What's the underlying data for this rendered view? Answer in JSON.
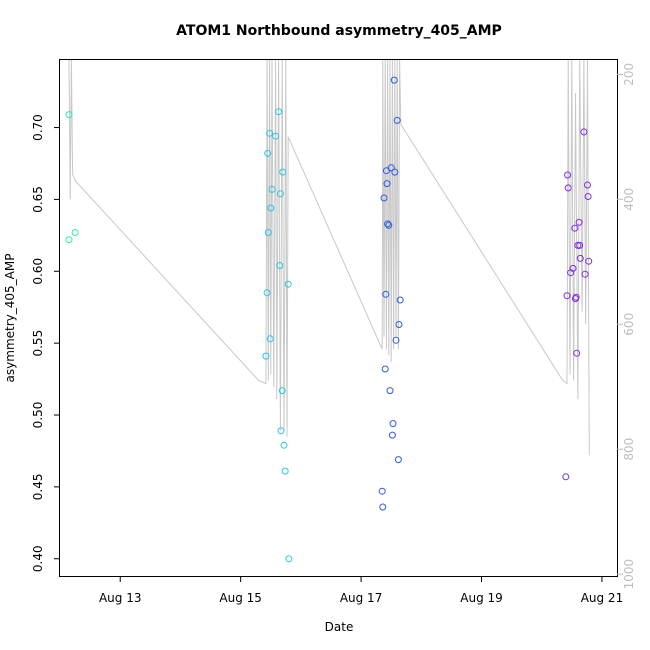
{
  "chart_data": {
    "type": "scatter",
    "title": "ATOM1 Northbound asymmetry_405_AMP",
    "xlabel": "Date",
    "ylabel": "asymmetry_405_AMP",
    "xlim": [
      12.0,
      21.25
    ],
    "ylim": [
      0.388,
      0.747
    ],
    "x_ticks": [
      {
        "value": 13,
        "label": "Aug 13"
      },
      {
        "value": 15,
        "label": "Aug 15"
      },
      {
        "value": 17,
        "label": "Aug 17"
      },
      {
        "value": 19,
        "label": "Aug 19"
      },
      {
        "value": 21,
        "label": "Aug 21"
      }
    ],
    "y_ticks": [
      0.4,
      0.45,
      0.5,
      0.55,
      0.6,
      0.65,
      0.7
    ],
    "y2_axis": {
      "reversed": true,
      "lim": [
        177,
        1003
      ],
      "ticks": [
        200,
        400,
        600,
        800,
        1000
      ],
      "color": "#bdbdbd"
    },
    "series": [
      {
        "color": "#33e8a6",
        "points": [
          [
            12.15,
            0.709
          ],
          [
            12.15,
            0.622
          ],
          [
            12.25,
            0.627
          ]
        ]
      },
      {
        "color": "#27c6e6",
        "points": [
          [
            15.42,
            0.541
          ],
          [
            15.44,
            0.585
          ],
          [
            15.45,
            0.682
          ],
          [
            15.46,
            0.627
          ],
          [
            15.48,
            0.696
          ],
          [
            15.49,
            0.553
          ],
          [
            15.5,
            0.644
          ],
          [
            15.52,
            0.657
          ],
          [
            15.58,
            0.694
          ],
          [
            15.63,
            0.711
          ],
          [
            15.65,
            0.604
          ],
          [
            15.66,
            0.654
          ],
          [
            15.67,
            0.489
          ],
          [
            15.69,
            0.517
          ],
          [
            15.7,
            0.669
          ],
          [
            15.72,
            0.479
          ],
          [
            15.74,
            0.461
          ],
          [
            15.79,
            0.591
          ],
          [
            15.8,
            0.4
          ]
        ]
      },
      {
        "color": "#2e5be6",
        "points": [
          [
            17.35,
            0.447
          ],
          [
            17.36,
            0.436
          ],
          [
            17.38,
            0.651
          ],
          [
            17.4,
            0.532
          ],
          [
            17.41,
            0.584
          ],
          [
            17.42,
            0.67
          ],
          [
            17.43,
            0.661
          ],
          [
            17.44,
            0.633
          ],
          [
            17.46,
            0.632
          ],
          [
            17.48,
            0.517
          ],
          [
            17.5,
            0.672
          ],
          [
            17.52,
            0.486
          ],
          [
            17.53,
            0.494
          ],
          [
            17.55,
            0.733
          ],
          [
            17.56,
            0.669
          ],
          [
            17.58,
            0.552
          ],
          [
            17.6,
            0.705
          ],
          [
            17.62,
            0.469
          ],
          [
            17.63,
            0.563
          ],
          [
            17.65,
            0.58
          ]
        ]
      },
      {
        "color": "#7e2ee6",
        "points": [
          [
            20.4,
            0.457
          ],
          [
            20.42,
            0.583
          ],
          [
            20.43,
            0.667
          ],
          [
            20.44,
            0.658
          ],
          [
            20.48,
            0.599
          ],
          [
            20.52,
            0.602
          ],
          [
            20.55,
            0.63
          ],
          [
            20.56,
            0.581
          ],
          [
            20.57,
            0.582
          ],
          [
            20.58,
            0.543
          ],
          [
            20.6,
            0.618
          ],
          [
            20.62,
            0.634
          ],
          [
            20.63,
            0.618
          ],
          [
            20.64,
            0.609
          ],
          [
            20.7,
            0.697
          ],
          [
            20.72,
            0.598
          ],
          [
            20.76,
            0.66
          ],
          [
            20.77,
            0.652
          ],
          [
            20.78,
            0.607
          ]
        ]
      }
    ],
    "pressure_series": {
      "color": "#c8c8c8",
      "points": [
        [
          12.15,
          177
        ],
        [
          12.17,
          400
        ],
        [
          12.19,
          177
        ],
        [
          12.21,
          360
        ],
        [
          12.25,
          370
        ],
        [
          15.3,
          690
        ],
        [
          15.42,
          695
        ],
        [
          15.44,
          177
        ],
        [
          15.46,
          690
        ],
        [
          15.48,
          177
        ],
        [
          15.5,
          680
        ],
        [
          15.52,
          177
        ],
        [
          15.55,
          700
        ],
        [
          15.58,
          177
        ],
        [
          15.6,
          720
        ],
        [
          15.63,
          177
        ],
        [
          15.66,
          770
        ],
        [
          15.69,
          177
        ],
        [
          15.72,
          770
        ],
        [
          15.75,
          177
        ],
        [
          15.77,
          780
        ],
        [
          15.79,
          300
        ],
        [
          17.35,
          640
        ],
        [
          17.36,
          177
        ],
        [
          17.38,
          620
        ],
        [
          17.4,
          177
        ],
        [
          17.42,
          640
        ],
        [
          17.44,
          177
        ],
        [
          17.46,
          650
        ],
        [
          17.48,
          177
        ],
        [
          17.5,
          660
        ],
        [
          17.52,
          177
        ],
        [
          17.54,
          640
        ],
        [
          17.56,
          177
        ],
        [
          17.58,
          620
        ],
        [
          17.6,
          177
        ],
        [
          17.62,
          640
        ],
        [
          17.64,
          177
        ],
        [
          17.66,
          280
        ],
        [
          20.35,
          690
        ],
        [
          20.42,
          695
        ],
        [
          20.44,
          177
        ],
        [
          20.47,
          680
        ],
        [
          20.5,
          177
        ],
        [
          20.53,
          690
        ],
        [
          20.56,
          230
        ],
        [
          20.6,
          720
        ],
        [
          20.63,
          177
        ],
        [
          20.67,
          580
        ],
        [
          20.7,
          177
        ],
        [
          20.73,
          600
        ],
        [
          20.76,
          177
        ],
        [
          20.79,
          810
        ]
      ]
    }
  }
}
